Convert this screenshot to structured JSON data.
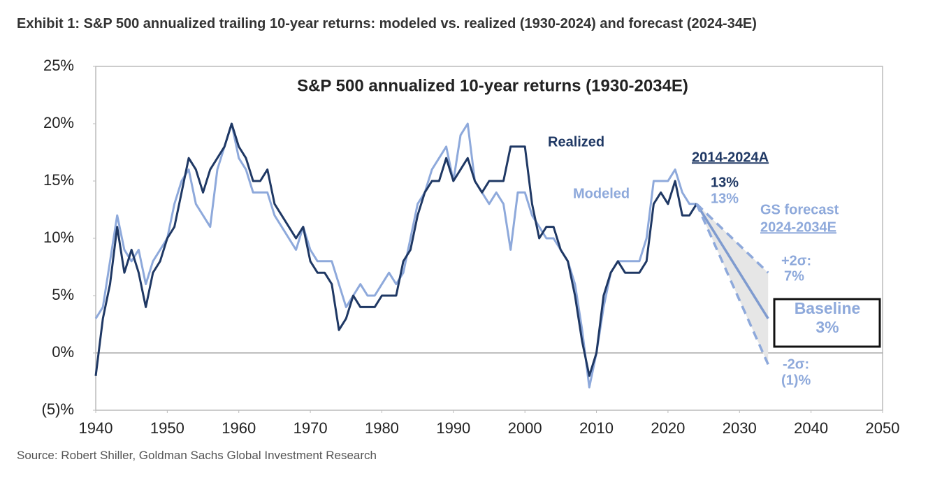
{
  "chart_data": {
    "type": "line",
    "title": "Exhibit 1: S&P 500 annualized trailing 10-year returns: modeled vs. realized (1930-2024) and forecast (2024-34E)",
    "subtitle": "S&P 500 annualized 10-year returns (1930-2034E)",
    "source": "Source: Robert Shiller, Goldman Sachs Global Investment Research",
    "x": [
      1940,
      1941,
      1942,
      1943,
      1944,
      1945,
      1946,
      1947,
      1948,
      1949,
      1950,
      1951,
      1952,
      1953,
      1954,
      1955,
      1956,
      1957,
      1958,
      1959,
      1960,
      1961,
      1962,
      1963,
      1964,
      1965,
      1966,
      1967,
      1968,
      1969,
      1970,
      1971,
      1972,
      1973,
      1974,
      1975,
      1976,
      1977,
      1978,
      1979,
      1980,
      1981,
      1982,
      1983,
      1984,
      1985,
      1986,
      1987,
      1988,
      1989,
      1990,
      1991,
      1992,
      1993,
      1994,
      1995,
      1996,
      1997,
      1998,
      1999,
      2000,
      2001,
      2002,
      2003,
      2004,
      2005,
      2006,
      2007,
      2008,
      2009,
      2010,
      2011,
      2012,
      2013,
      2014,
      2015,
      2016,
      2017,
      2018,
      2019,
      2020,
      2021,
      2022,
      2023,
      2024
    ],
    "series": [
      {
        "name": "Realized",
        "color": "#1f3864",
        "values": [
          -2,
          3,
          6,
          11,
          7,
          9,
          7,
          4,
          7,
          8,
          10,
          11,
          14,
          17,
          16,
          14,
          16,
          17,
          18,
          20,
          18,
          17,
          15,
          15,
          16,
          13,
          12,
          11,
          10,
          11,
          8,
          7,
          7,
          6,
          2,
          3,
          5,
          4,
          4,
          4,
          5,
          5,
          5,
          8,
          9,
          12,
          14,
          15,
          15,
          17,
          15,
          16,
          17,
          15,
          14,
          15,
          15,
          15,
          18,
          18,
          18,
          13,
          10,
          11,
          11,
          9,
          8,
          5,
          1,
          -2,
          0,
          5,
          7,
          8,
          7,
          7,
          7,
          8,
          13,
          14,
          13,
          15,
          12,
          12,
          13
        ]
      },
      {
        "name": "Modeled",
        "color": "#8ea9db",
        "values": [
          3,
          4,
          8,
          12,
          9,
          8,
          9,
          6,
          8,
          9,
          10,
          13,
          15,
          16,
          13,
          12,
          11,
          16,
          18,
          20,
          17,
          16,
          14,
          14,
          14,
          12,
          11,
          10,
          9,
          11,
          9,
          8,
          8,
          8,
          6,
          4,
          5,
          6,
          5,
          5,
          6,
          7,
          6,
          7,
          10,
          13,
          14,
          16,
          17,
          18,
          15,
          19,
          20,
          15,
          14,
          13,
          14,
          13,
          9,
          14,
          14,
          12,
          11,
          10,
          10,
          9,
          8,
          6,
          2,
          -3,
          0,
          4,
          7,
          8,
          8,
          8,
          8,
          10,
          15,
          15,
          15,
          16,
          14,
          13,
          13
        ]
      },
      {
        "name": "Baseline",
        "color": "#7f9bcf",
        "x": [
          2024,
          2034
        ],
        "values": [
          13,
          3
        ]
      },
      {
        "name": "+2σ:",
        "color": "#8ea9db",
        "x": [
          2024,
          2034
        ],
        "values": [
          13,
          7
        ],
        "dashed": true
      },
      {
        "name": "-2σ:",
        "color": "#8ea9db",
        "x": [
          2024,
          2034
        ],
        "values": [
          13,
          -1
        ],
        "dashed": true
      }
    ],
    "annotations": [
      "2014-2024A",
      "13%",
      "13%",
      "GS forecast",
      "2024-2034E",
      "7%",
      "3%",
      "(1)%"
    ],
    "xlim": [
      1940,
      2050
    ],
    "xticks": [
      1940,
      1950,
      1960,
      1970,
      1980,
      1990,
      2000,
      2010,
      2020,
      2030,
      2040,
      2050
    ],
    "ylim": [
      -5,
      25
    ],
    "yticks": [
      {
        "value": -5,
        "label": "(5)%"
      },
      {
        "value": 0,
        "label": "0%"
      },
      {
        "value": 5,
        "label": "5%"
      },
      {
        "value": 10,
        "label": "10%"
      },
      {
        "value": 15,
        "label": "15%"
      },
      {
        "value": 20,
        "label": "20%"
      },
      {
        "value": 25,
        "label": "25%"
      }
    ],
    "grid": false
  }
}
